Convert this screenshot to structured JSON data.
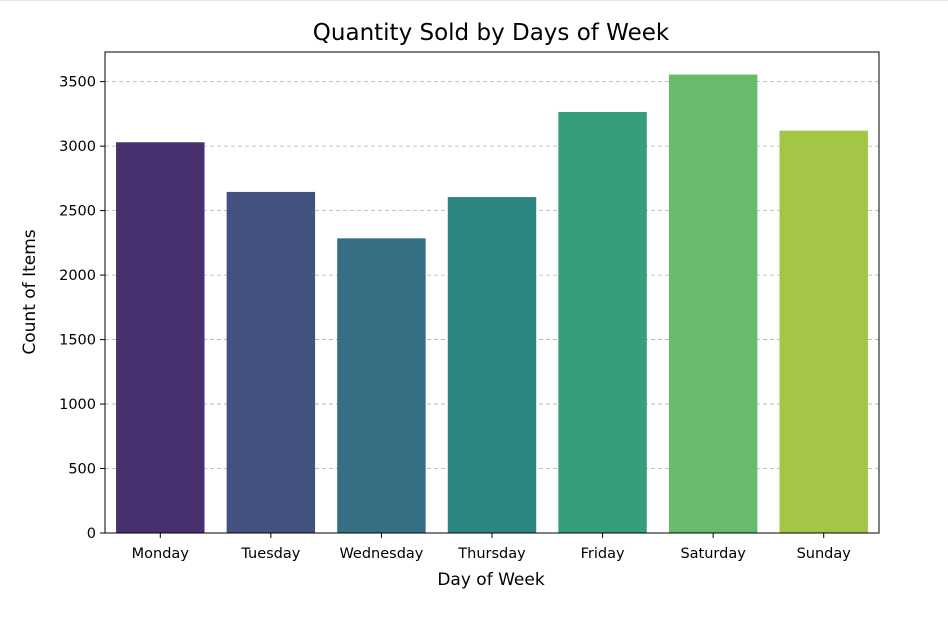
{
  "chart_data": {
    "type": "bar",
    "title": "Quantity Sold by Days of Week",
    "xlabel": "Day of Week",
    "ylabel": "Count of Items",
    "categories": [
      "Monday",
      "Tuesday",
      "Wednesday",
      "Thursday",
      "Friday",
      "Saturday",
      "Sunday"
    ],
    "values": [
      3030,
      2645,
      2285,
      2605,
      3265,
      3555,
      3120
    ],
    "colors": [
      "#482f6e",
      "#43527e",
      "#366f83",
      "#2d8580",
      "#369e79",
      "#68bb6b",
      "#a3c647"
    ],
    "yticks": [
      0,
      500,
      1000,
      1500,
      2000,
      2500,
      3000,
      3500
    ],
    "ylim": [
      0,
      3730
    ],
    "grid": "y-dashed",
    "legend": "none"
  }
}
